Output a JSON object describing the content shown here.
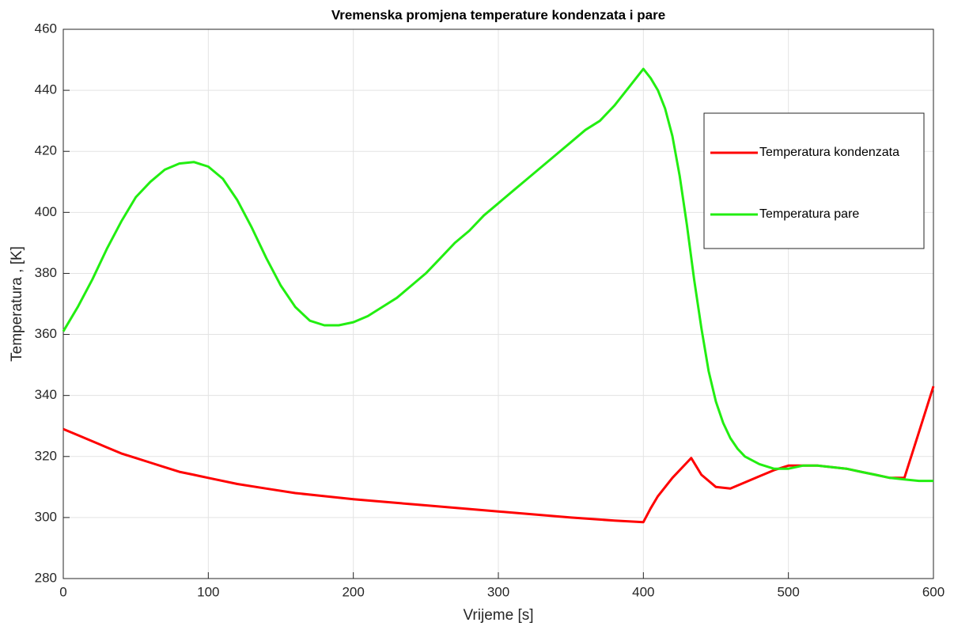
{
  "chart_data": {
    "type": "line",
    "title": "Vremenska promjena temperature kondenzata i pare",
    "xlabel": "Vrijeme [s]",
    "ylabel": "Temperatura , [K]",
    "xlim": [
      0,
      600
    ],
    "ylim": [
      280,
      460
    ],
    "xticks": [
      0,
      100,
      200,
      300,
      400,
      500,
      600
    ],
    "yticks": [
      280,
      300,
      320,
      340,
      360,
      380,
      400,
      420,
      440,
      460
    ],
    "grid": true,
    "legend": "upper right",
    "series": [
      {
        "name": "Temperatura kondenzata",
        "color": "#ff0000",
        "x": [
          0,
          10,
          20,
          30,
          40,
          50,
          60,
          70,
          80,
          90,
          100,
          120,
          140,
          160,
          180,
          200,
          250,
          300,
          350,
          380,
          400,
          405,
          410,
          420,
          430,
          433,
          440,
          450,
          460,
          470,
          480,
          490,
          500,
          510,
          520,
          530,
          540,
          550,
          560,
          570,
          580,
          590,
          600
        ],
        "values": [
          329,
          327,
          325,
          323,
          321,
          319.5,
          318,
          316.5,
          315,
          314,
          313,
          311,
          309.5,
          308,
          307,
          306,
          304,
          302,
          300,
          299,
          298.5,
          303,
          307,
          313,
          318,
          319.5,
          314,
          310,
          309.5,
          311.5,
          313.5,
          315.5,
          317,
          317,
          317,
          316.5,
          316,
          315,
          314,
          313,
          313,
          328,
          343
        ]
      },
      {
        "name": "Temperatura pare",
        "color": "#22ee11",
        "x": [
          0,
          10,
          20,
          30,
          40,
          50,
          60,
          70,
          80,
          90,
          100,
          110,
          120,
          130,
          140,
          150,
          160,
          170,
          180,
          190,
          200,
          210,
          220,
          230,
          240,
          250,
          260,
          270,
          280,
          290,
          300,
          310,
          320,
          330,
          340,
          350,
          360,
          370,
          380,
          390,
          400,
          405,
          410,
          415,
          420,
          425,
          430,
          435,
          440,
          445,
          450,
          455,
          460,
          465,
          470,
          480,
          490,
          500,
          510,
          520,
          530,
          540,
          550,
          560,
          570,
          580,
          590,
          600
        ],
        "values": [
          361,
          369,
          378,
          388,
          397,
          405,
          410,
          414,
          416,
          416.5,
          415,
          411,
          404,
          395,
          385,
          376,
          369,
          364.5,
          363,
          363,
          364,
          366,
          369,
          372,
          376,
          380,
          385,
          390,
          394,
          399,
          403,
          407,
          411,
          415,
          419,
          423,
          427,
          430,
          435,
          441,
          447,
          444,
          440,
          434,
          425,
          412,
          396,
          378,
          362,
          348,
          338,
          331,
          326,
          322.5,
          320,
          317.5,
          316,
          316,
          317,
          317,
          316.5,
          316,
          315,
          314,
          313,
          312.5,
          312,
          312
        ]
      }
    ]
  }
}
